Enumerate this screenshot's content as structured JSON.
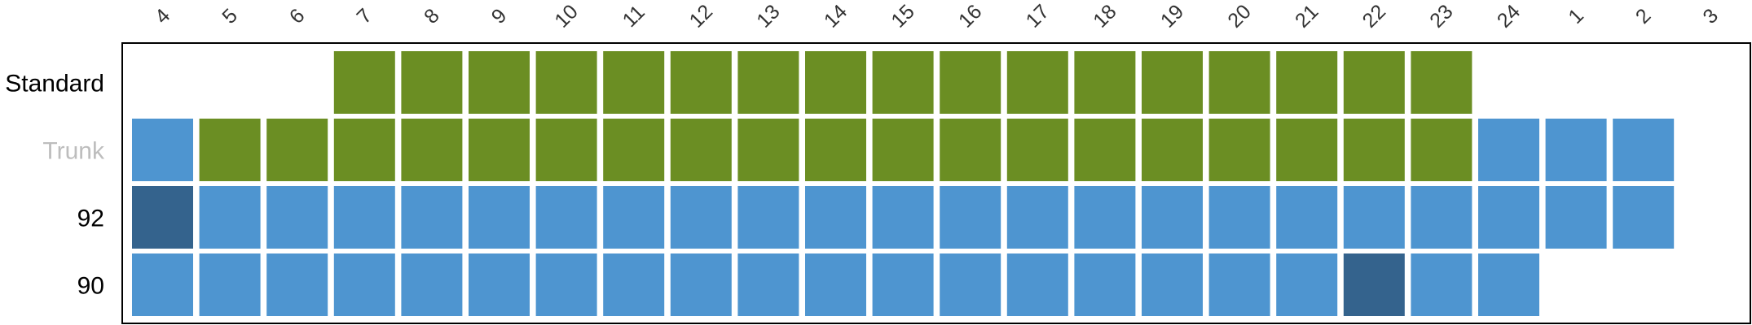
{
  "chart_data": {
    "type": "heatmap",
    "title": "",
    "xlabel": "",
    "ylabel": "",
    "columns": [
      "4",
      "5",
      "6",
      "7",
      "8",
      "9",
      "10",
      "11",
      "12",
      "13",
      "14",
      "15",
      "16",
      "17",
      "18",
      "19",
      "20",
      "21",
      "22",
      "23",
      "24",
      "1",
      "2",
      "3"
    ],
    "rows": [
      {
        "label": "Standard",
        "label_color": "#000000",
        "cells": [
          null,
          null,
          null,
          "g",
          "g",
          "g",
          "g",
          "g",
          "g",
          "g",
          "g",
          "g",
          "g",
          "g",
          "g",
          "g",
          "g",
          "g",
          "g",
          "g",
          null,
          null,
          null,
          null
        ]
      },
      {
        "label": "Trunk",
        "label_color": "#bdbdbd",
        "cells": [
          "b",
          "g",
          "g",
          "g",
          "g",
          "g",
          "g",
          "g",
          "g",
          "g",
          "g",
          "g",
          "g",
          "g",
          "g",
          "g",
          "g",
          "g",
          "g",
          "g",
          "b",
          "b",
          "b",
          null
        ]
      },
      {
        "label": "92",
        "label_color": "#000000",
        "cells": [
          "d",
          "b",
          "b",
          "b",
          "b",
          "b",
          "b",
          "b",
          "b",
          "b",
          "b",
          "b",
          "b",
          "b",
          "b",
          "b",
          "b",
          "b",
          "b",
          "b",
          "b",
          "b",
          "b",
          null
        ]
      },
      {
        "label": "90",
        "label_color": "#000000",
        "cells": [
          "b",
          "b",
          "b",
          "b",
          "b",
          "b",
          "b",
          "b",
          "b",
          "b",
          "b",
          "b",
          "b",
          "b",
          "b",
          "b",
          "b",
          "b",
          "d",
          "b",
          "b",
          null,
          null,
          null
        ]
      }
    ],
    "palette": {
      "g": "#6b8e23",
      "b": "#4e95d0",
      "d": "#34638d"
    },
    "grid": false,
    "legend": "none"
  }
}
